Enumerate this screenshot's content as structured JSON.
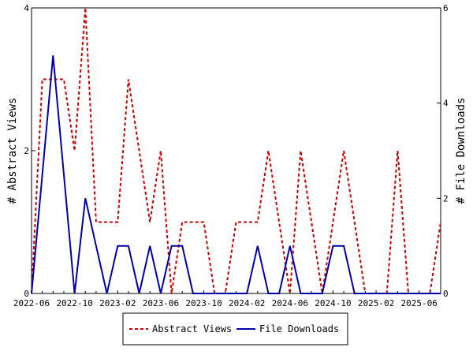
{
  "chart_data": {
    "type": "line",
    "title": "",
    "x_ticks": [
      "2022-06",
      "2022-10",
      "2023-02",
      "2023-06",
      "2023-10",
      "2024-02",
      "2024-06",
      "2024-10",
      "2025-02",
      "2025-06"
    ],
    "x": [
      "2022-06",
      "2022-07",
      "2022-08",
      "2022-09",
      "2022-10",
      "2022-11",
      "2022-12",
      "2023-01",
      "2023-02",
      "2023-03",
      "2023-04",
      "2023-05",
      "2023-06",
      "2023-07",
      "2023-08",
      "2023-09",
      "2023-10",
      "2023-11",
      "2023-12",
      "2024-01",
      "2024-02",
      "2024-03",
      "2024-04",
      "2024-05",
      "2024-06",
      "2024-07",
      "2024-08",
      "2024-09",
      "2024-10",
      "2024-11",
      "2024-12",
      "2025-01",
      "2025-02",
      "2025-03",
      "2025-04",
      "2025-05",
      "2025-06",
      "2025-07",
      "2025-08"
    ],
    "y_left": {
      "label": "# Abstract Views",
      "range": [
        0,
        4
      ],
      "ticks": [
        "0",
        "2",
        "4"
      ]
    },
    "y_right": {
      "label": "# File Downloads",
      "range": [
        0,
        6
      ],
      "ticks": [
        "0",
        "2",
        "4",
        "6"
      ]
    },
    "series": [
      {
        "name": "Abstract Views",
        "axis": "left",
        "color": "#cc0000",
        "style": "dashed",
        "values": [
          0,
          3,
          3,
          3,
          2,
          4,
          1,
          1,
          1,
          3,
          2,
          1,
          2,
          0,
          1,
          1,
          1,
          0,
          0,
          1,
          1,
          1,
          2,
          1,
          0,
          2,
          1,
          0,
          1,
          2,
          1,
          0,
          0,
          0,
          2,
          0,
          0,
          0,
          1
        ]
      },
      {
        "name": "File Downloads",
        "axis": "right",
        "color": "#0000aa",
        "style": "solid",
        "values": [
          0,
          2.5,
          5,
          2.5,
          0,
          2,
          1,
          0,
          1,
          1,
          0,
          1,
          0,
          1,
          1,
          0,
          0,
          0,
          0,
          0,
          0,
          1,
          0,
          0,
          1,
          0,
          0,
          0,
          1,
          1,
          0,
          0,
          0,
          0,
          0,
          0,
          0,
          0,
          0
        ]
      }
    ],
    "legend": {
      "placement": "bottom",
      "entries": [
        "Abstract Views",
        "File Downloads"
      ]
    }
  }
}
